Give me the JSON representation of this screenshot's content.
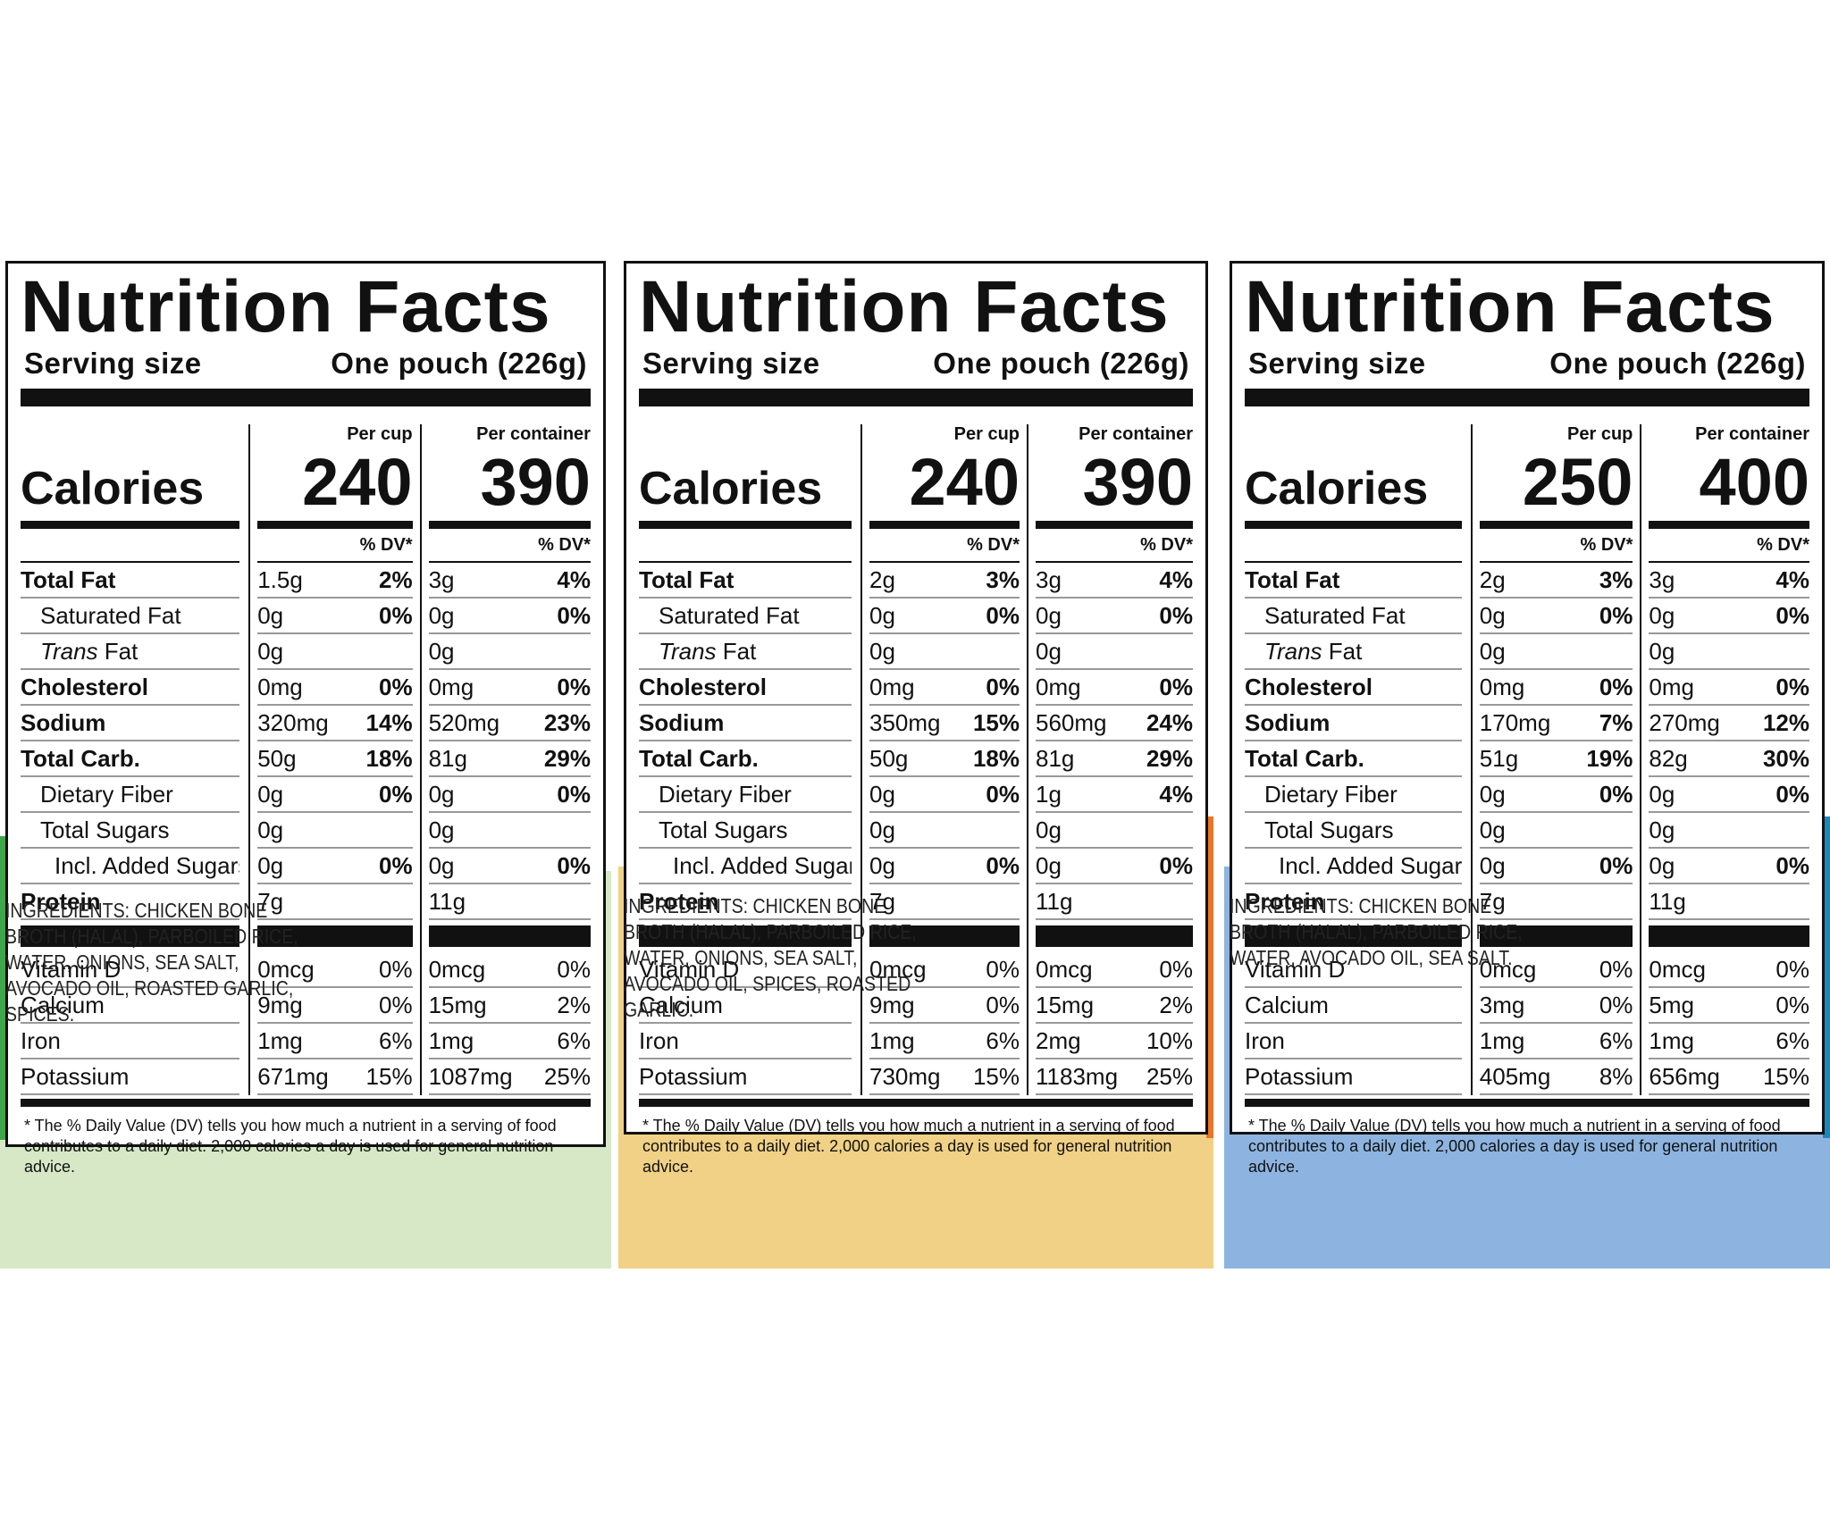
{
  "labels": [
    {
      "bg_color": "#d6e8c6",
      "accent": "#3fa649",
      "title": "Nutrition Facts",
      "serving_label": "Serving size",
      "serving_value": "One pouch (226g)",
      "per_cup": "Per cup",
      "per_container": "Per container",
      "calories_label": "Calories",
      "calories_cup": "240",
      "calories_container": "390",
      "dv_header": "% DV*",
      "nutrients": [
        {
          "name": "Total Fat",
          "cup": "1.5g",
          "cup_dv": "2%",
          "cont": "3g",
          "cont_dv": "4%",
          "style": "bold"
        },
        {
          "name": "Saturated Fat",
          "cup": "0g",
          "cup_dv": "0%",
          "cont": "0g",
          "cont_dv": "0%",
          "style": "ind1"
        },
        {
          "name": "Trans Fat",
          "cup": "0g",
          "cup_dv": "",
          "cont": "0g",
          "cont_dv": "",
          "style": "trans"
        },
        {
          "name": "Cholesterol",
          "cup": "0mg",
          "cup_dv": "0%",
          "cont": "0mg",
          "cont_dv": "0%",
          "style": "bold"
        },
        {
          "name": "Sodium",
          "cup": "320mg",
          "cup_dv": "14%",
          "cont": "520mg",
          "cont_dv": "23%",
          "style": "bold"
        },
        {
          "name": "Total Carb.",
          "cup": "50g",
          "cup_dv": "18%",
          "cont": "81g",
          "cont_dv": "29%",
          "style": "bold"
        },
        {
          "name": "Dietary Fiber",
          "cup": "0g",
          "cup_dv": "0%",
          "cont": "0g",
          "cont_dv": "0%",
          "style": "ind1"
        },
        {
          "name": "Total Sugars",
          "cup": "0g",
          "cup_dv": "",
          "cont": "0g",
          "cont_dv": "",
          "style": "ind1"
        },
        {
          "name": "Incl. Added Sugars",
          "cup": "0g",
          "cup_dv": "0%",
          "cont": "0g",
          "cont_dv": "0%",
          "style": "ind2"
        },
        {
          "name": "Protein",
          "cup": "7g",
          "cup_dv": "",
          "cont": "11g",
          "cont_dv": "",
          "style": "bold"
        }
      ],
      "vitamins": [
        {
          "name": "Vitamin D",
          "cup": "0mcg",
          "cup_dv": "0%",
          "cont": "0mcg",
          "cont_dv": "0%"
        },
        {
          "name": "Calcium",
          "cup": "9mg",
          "cup_dv": "0%",
          "cont": "15mg",
          "cont_dv": "2%"
        },
        {
          "name": "Iron",
          "cup": "1mg",
          "cup_dv": "6%",
          "cont": "1mg",
          "cont_dv": "6%"
        },
        {
          "name": "Potassium",
          "cup": "671mg",
          "cup_dv": "15%",
          "cont": "1087mg",
          "cont_dv": "25%"
        }
      ],
      "footnote": "* The % Daily Value (DV) tells you how much a nutrient in a serving of food contributes to a daily diet. 2,000 calories a day is used for general nutrition advice.",
      "ingredients": "INGREDIENTS: CHICKEN BONE BROTH (HALAL), PARBOILED RICE, WATER, ONIONS, SEA SALT, AVOCADO OIL, ROASTED GARLIC, SPICES."
    },
    {
      "bg_color": "#f0d185",
      "accent": "#e8752a",
      "title": "Nutrition Facts",
      "serving_label": "Serving size",
      "serving_value": "One pouch (226g)",
      "per_cup": "Per cup",
      "per_container": "Per container",
      "calories_label": "Calories",
      "calories_cup": "240",
      "calories_container": "390",
      "dv_header": "% DV*",
      "nutrients": [
        {
          "name": "Total Fat",
          "cup": "2g",
          "cup_dv": "3%",
          "cont": "3g",
          "cont_dv": "4%",
          "style": "bold"
        },
        {
          "name": "Saturated Fat",
          "cup": "0g",
          "cup_dv": "0%",
          "cont": "0g",
          "cont_dv": "0%",
          "style": "ind1"
        },
        {
          "name": "Trans Fat",
          "cup": "0g",
          "cup_dv": "",
          "cont": "0g",
          "cont_dv": "",
          "style": "trans"
        },
        {
          "name": "Cholesterol",
          "cup": "0mg",
          "cup_dv": "0%",
          "cont": "0mg",
          "cont_dv": "0%",
          "style": "bold"
        },
        {
          "name": "Sodium",
          "cup": "350mg",
          "cup_dv": "15%",
          "cont": "560mg",
          "cont_dv": "24%",
          "style": "bold"
        },
        {
          "name": "Total Carb.",
          "cup": "50g",
          "cup_dv": "18%",
          "cont": "81g",
          "cont_dv": "29%",
          "style": "bold"
        },
        {
          "name": "Dietary Fiber",
          "cup": "0g",
          "cup_dv": "0%",
          "cont": "1g",
          "cont_dv": "4%",
          "style": "ind1"
        },
        {
          "name": "Total Sugars",
          "cup": "0g",
          "cup_dv": "",
          "cont": "0g",
          "cont_dv": "",
          "style": "ind1"
        },
        {
          "name": "Incl. Added Sugars",
          "cup": "0g",
          "cup_dv": "0%",
          "cont": "0g",
          "cont_dv": "0%",
          "style": "ind2"
        },
        {
          "name": "Protein",
          "cup": "7g",
          "cup_dv": "",
          "cont": "11g",
          "cont_dv": "",
          "style": "bold"
        }
      ],
      "vitamins": [
        {
          "name": "Vitamin D",
          "cup": "0mcg",
          "cup_dv": "0%",
          "cont": "0mcg",
          "cont_dv": "0%"
        },
        {
          "name": "Calcium",
          "cup": "9mg",
          "cup_dv": "0%",
          "cont": "15mg",
          "cont_dv": "2%"
        },
        {
          "name": "Iron",
          "cup": "1mg",
          "cup_dv": "6%",
          "cont": "2mg",
          "cont_dv": "10%"
        },
        {
          "name": "Potassium",
          "cup": "730mg",
          "cup_dv": "15%",
          "cont": "1183mg",
          "cont_dv": "25%"
        }
      ],
      "footnote": "* The % Daily Value (DV) tells you how much a nutrient in a serving of food contributes to a daily diet. 2,000 calories a day is used for general nutrition advice.",
      "ingredients": "INGREDIENTS: CHICKEN BONE BROTH (HALAL), PARBOILED RICE, WATER, ONIONS, SEA SALT, AVOCADO OIL, SPICES, ROASTED GARLIC."
    },
    {
      "bg_color": "#8db4e0",
      "accent": "#1f87b8",
      "title": "Nutrition Facts",
      "serving_label": "Serving size",
      "serving_value": "One pouch (226g)",
      "per_cup": "Per cup",
      "per_container": "Per container",
      "calories_label": "Calories",
      "calories_cup": "250",
      "calories_container": "400",
      "dv_header": "% DV*",
      "nutrients": [
        {
          "name": "Total Fat",
          "cup": "2g",
          "cup_dv": "3%",
          "cont": "3g",
          "cont_dv": "4%",
          "style": "bold"
        },
        {
          "name": "Saturated Fat",
          "cup": "0g",
          "cup_dv": "0%",
          "cont": "0g",
          "cont_dv": "0%",
          "style": "ind1"
        },
        {
          "name": "Trans Fat",
          "cup": "0g",
          "cup_dv": "",
          "cont": "0g",
          "cont_dv": "",
          "style": "trans"
        },
        {
          "name": "Cholesterol",
          "cup": "0mg",
          "cup_dv": "0%",
          "cont": "0mg",
          "cont_dv": "0%",
          "style": "bold"
        },
        {
          "name": "Sodium",
          "cup": "170mg",
          "cup_dv": "7%",
          "cont": "270mg",
          "cont_dv": "12%",
          "style": "bold"
        },
        {
          "name": "Total Carb.",
          "cup": "51g",
          "cup_dv": "19%",
          "cont": "82g",
          "cont_dv": "30%",
          "style": "bold"
        },
        {
          "name": "Dietary Fiber",
          "cup": "0g",
          "cup_dv": "0%",
          "cont": "0g",
          "cont_dv": "0%",
          "style": "ind1"
        },
        {
          "name": "Total Sugars",
          "cup": "0g",
          "cup_dv": "",
          "cont": "0g",
          "cont_dv": "",
          "style": "ind1"
        },
        {
          "name": "Incl. Added Sugars",
          "cup": "0g",
          "cup_dv": "0%",
          "cont": "0g",
          "cont_dv": "0%",
          "style": "ind2"
        },
        {
          "name": "Protein",
          "cup": "7g",
          "cup_dv": "",
          "cont": "11g",
          "cont_dv": "",
          "style": "bold"
        }
      ],
      "vitamins": [
        {
          "name": "Vitamin D",
          "cup": "0mcg",
          "cup_dv": "0%",
          "cont": "0mcg",
          "cont_dv": "0%"
        },
        {
          "name": "Calcium",
          "cup": "3mg",
          "cup_dv": "0%",
          "cont": "5mg",
          "cont_dv": "0%"
        },
        {
          "name": "Iron",
          "cup": "1mg",
          "cup_dv": "6%",
          "cont": "1mg",
          "cont_dv": "6%"
        },
        {
          "name": "Potassium",
          "cup": "405mg",
          "cup_dv": "8%",
          "cont": "656mg",
          "cont_dv": "15%"
        }
      ],
      "footnote": "* The % Daily Value (DV) tells you how much a nutrient in a serving of food contributes to a daily diet. 2,000 calories a day is used for general nutrition advice.",
      "ingredients": "INGREDIENTS: CHICKEN BONE BROTH (HALAL), PARBOILED RICE, WATER, AVOCADO OIL, SEA SALT."
    }
  ]
}
